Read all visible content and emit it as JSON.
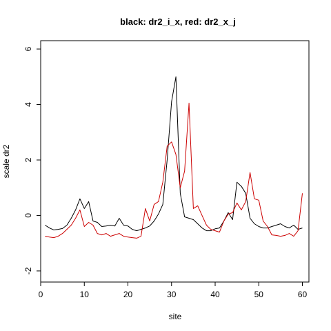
{
  "chart_data": {
    "type": "line",
    "title": "black: dr2_i_x, red: dr2_x_j",
    "xlabel": "site",
    "ylabel": "scale dr2",
    "xlim": [
      0,
      61.5
    ],
    "ylim": [
      -2.4,
      6.3
    ],
    "xticks": [
      0,
      10,
      20,
      30,
      40,
      50,
      60
    ],
    "yticks": [
      -2,
      0,
      2,
      4,
      6
    ],
    "grid": false,
    "legend": "none",
    "x": [
      1,
      2,
      3,
      4,
      5,
      6,
      7,
      8,
      9,
      10,
      11,
      12,
      13,
      14,
      15,
      16,
      17,
      18,
      19,
      20,
      21,
      22,
      23,
      24,
      25,
      26,
      27,
      28,
      29,
      30,
      31,
      32,
      33,
      34,
      35,
      36,
      37,
      38,
      39,
      40,
      41,
      42,
      43,
      44,
      45,
      46,
      47,
      48,
      49,
      50,
      51,
      52,
      53,
      54,
      55,
      56,
      57,
      58,
      59,
      60
    ],
    "series": [
      {
        "color": "#000000",
        "values": [
          -0.35,
          -0.45,
          -0.52,
          -0.5,
          -0.47,
          -0.35,
          -0.1,
          0.2,
          0.6,
          0.25,
          0.5,
          -0.2,
          -0.25,
          -0.4,
          -0.38,
          -0.35,
          -0.38,
          -0.1,
          -0.35,
          -0.38,
          -0.5,
          -0.55,
          -0.5,
          -0.45,
          -0.38,
          -0.2,
          0.05,
          0.4,
          2.0,
          4.1,
          5.0,
          0.8,
          -0.05,
          -0.1,
          -0.15,
          -0.3,
          -0.45,
          -0.55,
          -0.55,
          -0.48,
          -0.45,
          -0.2,
          0.1,
          -0.15,
          1.2,
          1.05,
          0.8,
          -0.1,
          -0.3,
          -0.4,
          -0.45,
          -0.45,
          -0.4,
          -0.35,
          -0.3,
          -0.4,
          -0.45,
          -0.35,
          -0.5,
          -0.45
        ]
      },
      {
        "color": "#cc0000",
        "values": [
          -0.75,
          -0.78,
          -0.8,
          -0.75,
          -0.65,
          -0.5,
          -0.35,
          -0.1,
          0.2,
          -0.4,
          -0.25,
          -0.35,
          -0.65,
          -0.7,
          -0.65,
          -0.75,
          -0.7,
          -0.65,
          -0.75,
          -0.78,
          -0.8,
          -0.82,
          -0.75,
          0.25,
          -0.2,
          0.4,
          0.5,
          1.2,
          2.5,
          2.65,
          2.2,
          1.0,
          1.6,
          4.05,
          0.25,
          0.35,
          0.0,
          -0.35,
          -0.5,
          -0.55,
          -0.6,
          -0.2,
          0.05,
          0.1,
          0.45,
          0.2,
          0.5,
          1.55,
          0.6,
          0.55,
          -0.2,
          -0.4,
          -0.7,
          -0.72,
          -0.75,
          -0.72,
          -0.65,
          -0.75,
          -0.55,
          0.8
        ]
      }
    ]
  }
}
